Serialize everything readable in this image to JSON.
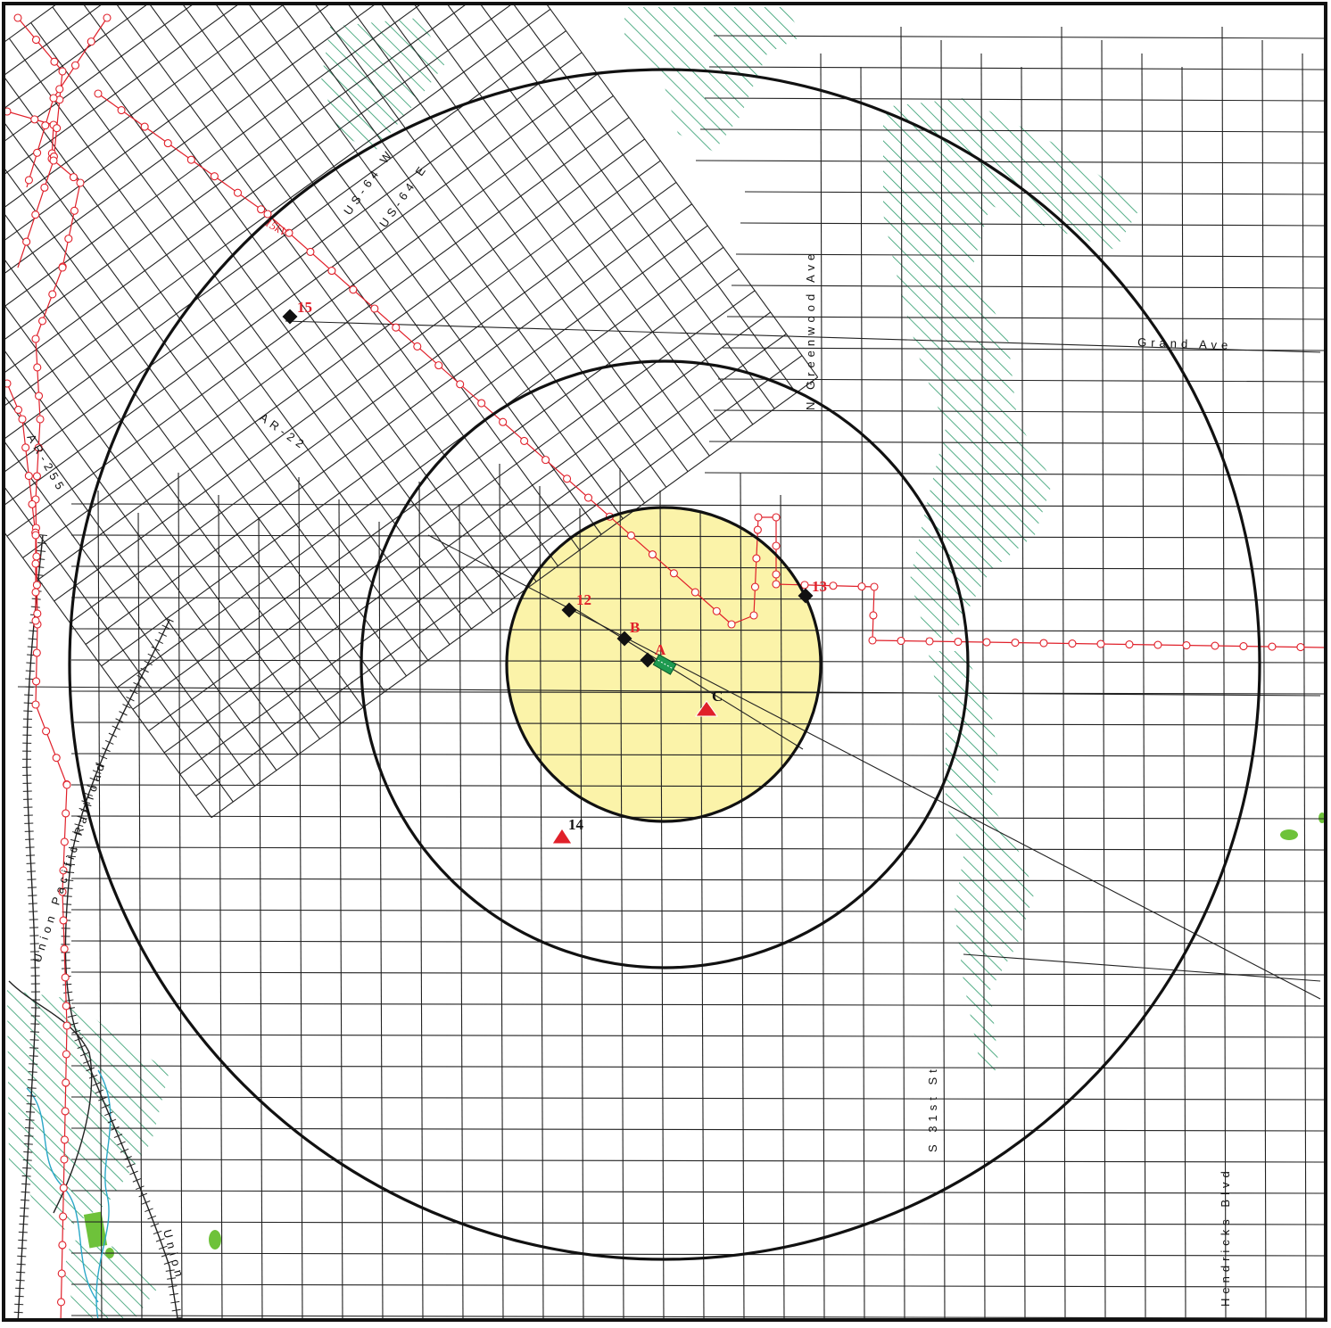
{
  "map": {
    "street_labels": {
      "us64w": "US-64 W",
      "us64e": "US-64 E",
      "ar22": "AR-22",
      "ar255": "AR-255",
      "greenwood": "N Greenwood Ave",
      "grand": "Grand Ave",
      "s31st": "S 31st St",
      "hendricks": "Hendricks Blvd",
      "railroad": "Union Pacific Railroad",
      "union": "Union",
      "powerline": "15kV"
    },
    "sites": [
      {
        "id": "A",
        "shape": "diamond",
        "label": "A",
        "label_color": "#e0202a"
      },
      {
        "id": "B",
        "shape": "diamond",
        "label": "B",
        "label_color": "#e0202a"
      },
      {
        "id": "C",
        "shape": "triangle",
        "label": "C",
        "label_color": "#111111"
      },
      {
        "id": "12",
        "shape": "diamond",
        "label": "12",
        "label_color": "#e0202a"
      },
      {
        "id": "13",
        "shape": "diamond",
        "label": "13",
        "label_color": "#e0202a"
      },
      {
        "id": "14",
        "shape": "triangle",
        "label": "14",
        "label_color": "#111111"
      },
      {
        "id": "15",
        "shape": "diamond",
        "label": "15",
        "label_color": "#e0202a"
      }
    ],
    "colors": {
      "background": "#ffffff",
      "streets": "#222222",
      "buffer_rings": "#111111",
      "inner_zone_fill": "#fbf3a9",
      "powerline": "#e0202a",
      "wetland_hatch": "#2a9a6a",
      "park_green": "#6ec23a",
      "stream": "#2aa8c8",
      "triangle_marker": "#e0202a",
      "diamond_marker": "#111111"
    }
  }
}
